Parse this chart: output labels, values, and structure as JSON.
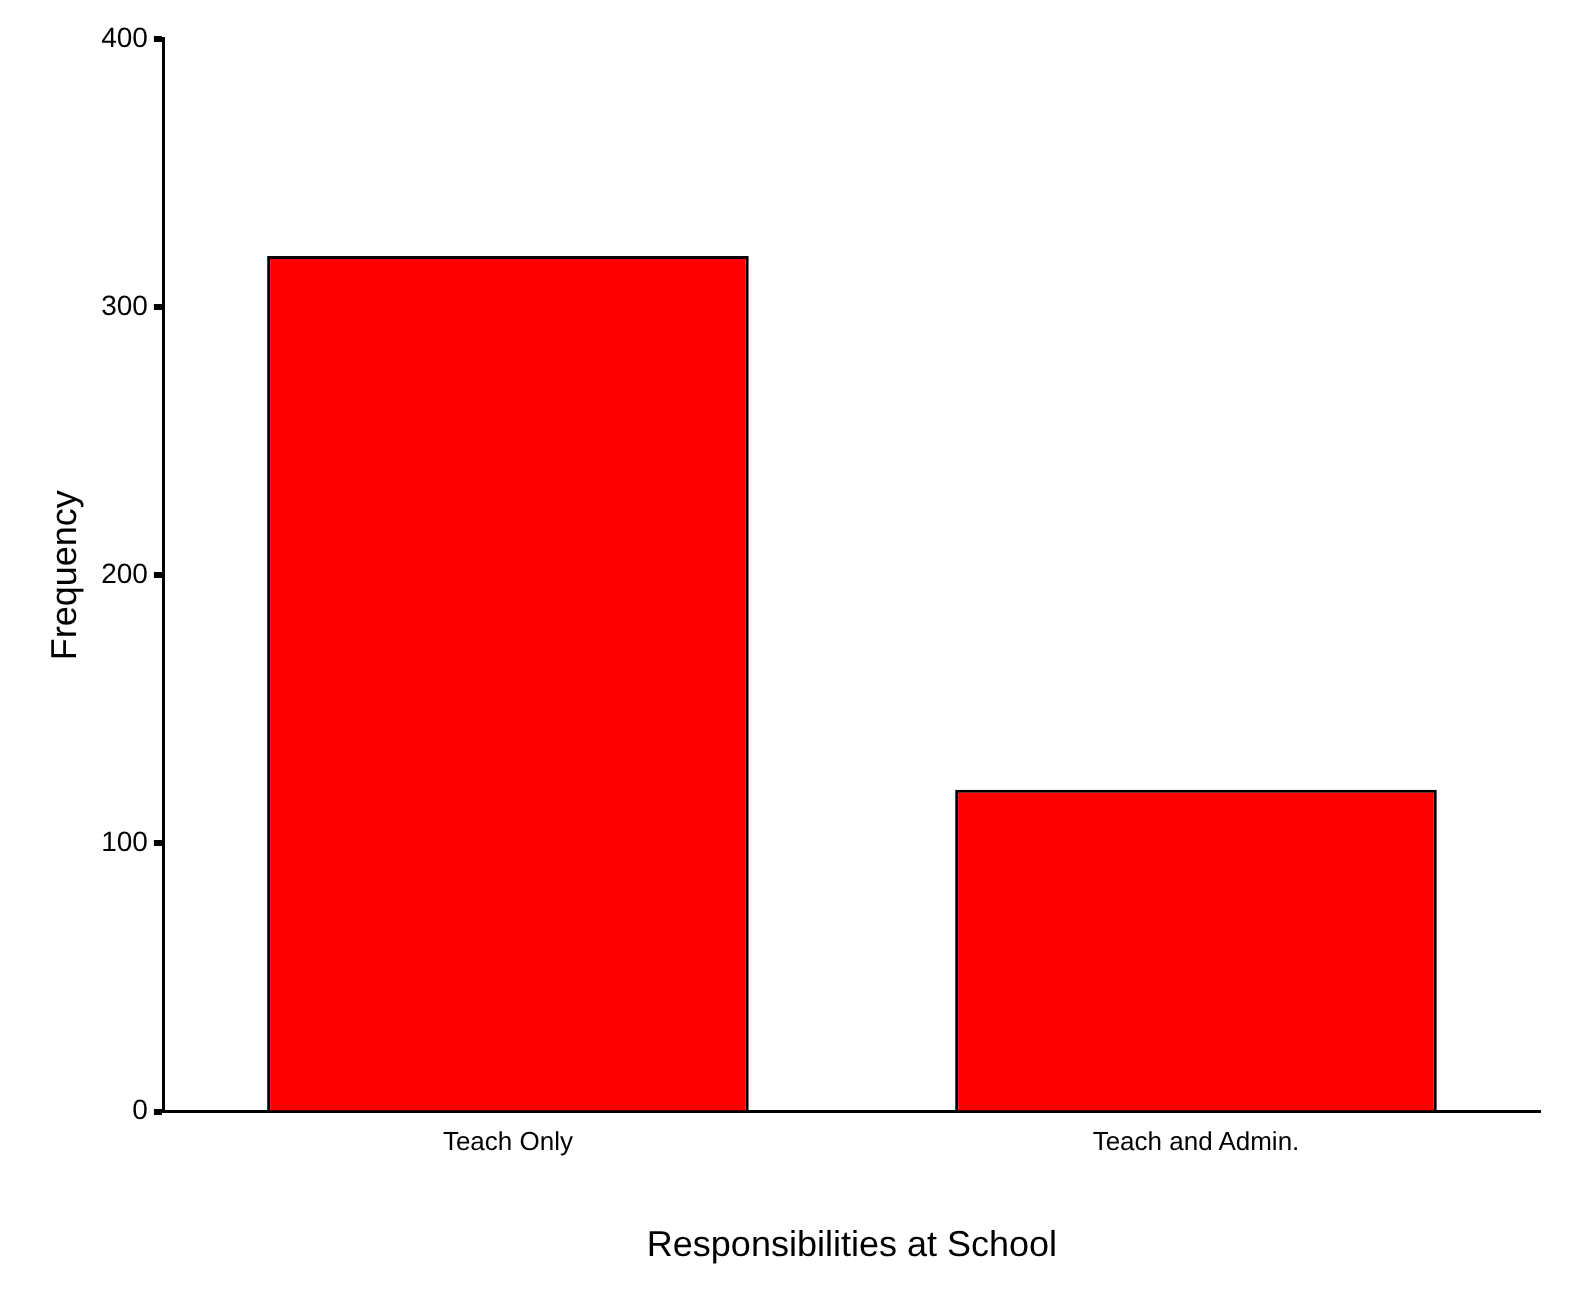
{
  "chart_data": {
    "type": "bar",
    "xlabel": "Responsibilities at School",
    "ylabel": "Frequency",
    "categories": [
      "Teach Only",
      "Teach and Admin."
    ],
    "values": [
      319,
      120
    ],
    "color": "#ff0000",
    "ylim": [
      0,
      400
    ],
    "yticks": [
      0,
      100,
      200,
      300,
      400
    ],
    "grid": false,
    "legend": false
  }
}
